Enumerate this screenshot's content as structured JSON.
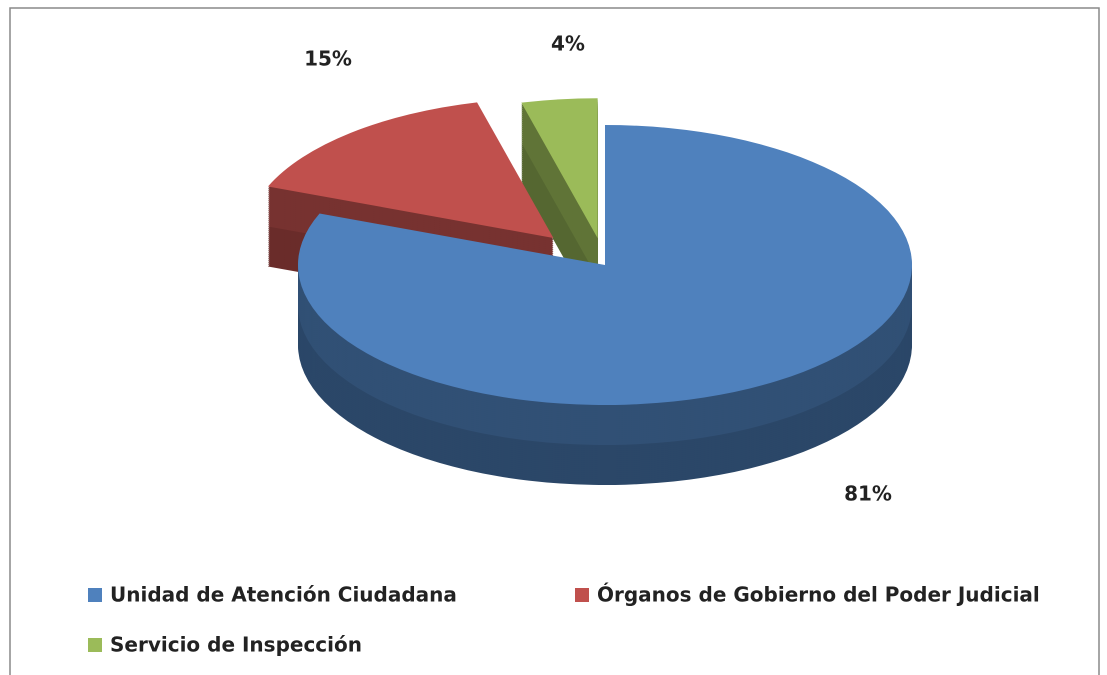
{
  "chart_data": {
    "type": "pie",
    "categories": [
      "Unidad de Atención Ciudadana",
      "Órganos de Gobierno del Poder Judicial",
      "Servicio de Inspección"
    ],
    "values": [
      81,
      15,
      4
    ],
    "value_labels": [
      "81%",
      "15%",
      "4%"
    ],
    "colors": [
      "#4f81bd",
      "#c0504d",
      "#9bbb59"
    ],
    "legend": "bottom"
  }
}
